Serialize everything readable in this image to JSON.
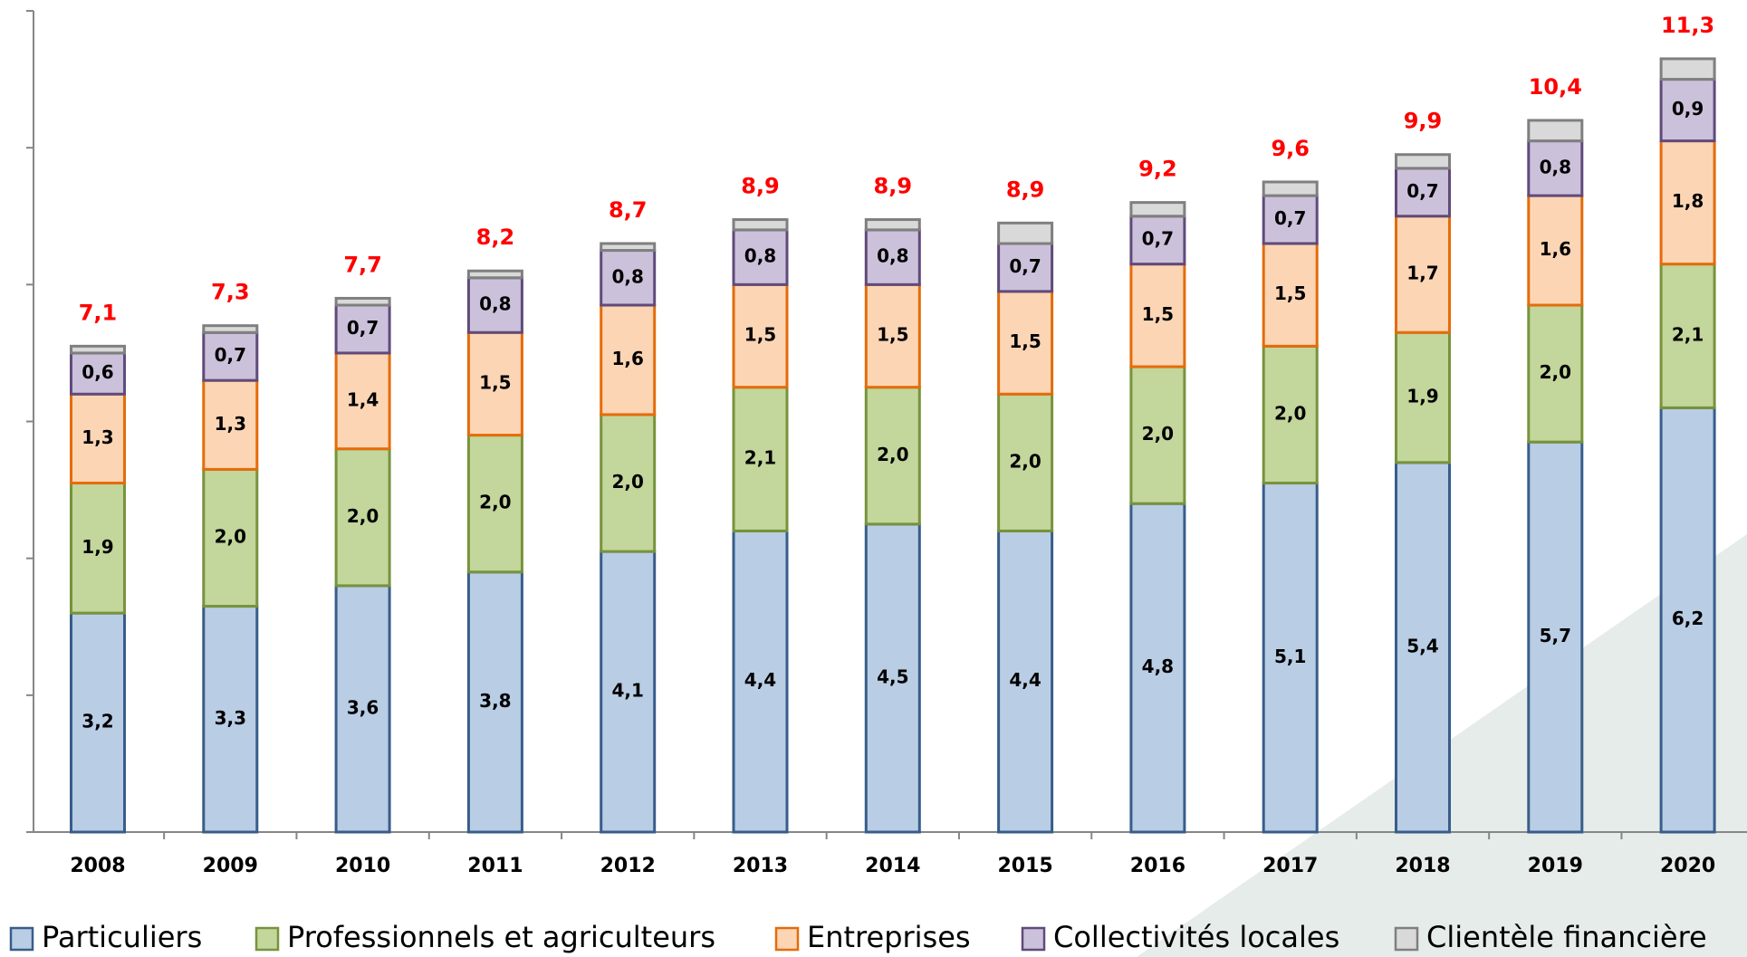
{
  "chart_data": {
    "type": "stacked_bar",
    "categories": [
      "2008",
      "2009",
      "2010",
      "2011",
      "2012",
      "2013",
      "2014",
      "2015",
      "2016",
      "2017",
      "2018",
      "2019",
      "2020"
    ],
    "ylim": [
      0,
      12
    ],
    "yticks": [
      0,
      2,
      4,
      6,
      8,
      10,
      12
    ],
    "series": [
      {
        "name": "Particuliers",
        "color": "#b9cde5",
        "edge": "#385d8a",
        "values": [
          3.2,
          3.3,
          3.6,
          3.8,
          4.1,
          4.4,
          4.5,
          4.4,
          4.8,
          5.1,
          5.4,
          5.7,
          6.2
        ],
        "value_labels": [
          "3,2",
          "3,3",
          "3,6",
          "3,8",
          "4,1",
          "4,4",
          "4,5",
          "4,4",
          "4,8",
          "5,1",
          "5,4",
          "5,7",
          "6,2"
        ]
      },
      {
        "name": "Professionnels et agriculteurs",
        "color": "#c3d69b",
        "edge": "#77933c",
        "values": [
          1.9,
          2.0,
          2.0,
          2.0,
          2.0,
          2.1,
          2.0,
          2.0,
          2.0,
          2.0,
          1.9,
          2.0,
          2.1
        ],
        "value_labels": [
          "1,9",
          "2,0",
          "2,0",
          "2,0",
          "2,0",
          "2,1",
          "2,0",
          "2,0",
          "2,0",
          "2,0",
          "1,9",
          "2,0",
          "2,1"
        ]
      },
      {
        "name": "Entreprises",
        "color": "#fcd5b5",
        "edge": "#e46c0a",
        "values": [
          1.3,
          1.3,
          1.4,
          1.5,
          1.6,
          1.5,
          1.5,
          1.5,
          1.5,
          1.5,
          1.7,
          1.6,
          1.8
        ],
        "value_labels": [
          "1,3",
          "1,3",
          "1,4",
          "1,5",
          "1,6",
          "1,5",
          "1,5",
          "1,5",
          "1,5",
          "1,5",
          "1,7",
          "1,6",
          "1,8"
        ]
      },
      {
        "name": "Collectivités locales",
        "color": "#ccc1da",
        "edge": "#604a7b",
        "values": [
          0.6,
          0.7,
          0.7,
          0.8,
          0.8,
          0.8,
          0.8,
          0.7,
          0.7,
          0.7,
          0.7,
          0.8,
          0.9
        ],
        "value_labels": [
          "0,6",
          "0,7",
          "0,7",
          "0,8",
          "0,8",
          "0,8",
          "0,8",
          "0,7",
          "0,7",
          "0,7",
          "0,7",
          "0,8",
          "0,9"
        ]
      },
      {
        "name": "Clientèle financière",
        "color": "#d9d9d9",
        "edge": "#7f7f7f",
        "values": [
          0.1,
          0.1,
          0.1,
          0.1,
          0.1,
          0.15,
          0.15,
          0.3,
          0.2,
          0.2,
          0.2,
          0.3,
          0.3
        ]
      }
    ],
    "totals": {
      "color": "#ff0000",
      "values": [
        7.1,
        7.3,
        7.7,
        8.2,
        8.7,
        8.9,
        8.9,
        8.9,
        9.2,
        9.6,
        9.9,
        10.4,
        11.3
      ],
      "value_labels": [
        "7,1",
        "7,3",
        "7,7",
        "8,2",
        "8,7",
        "8,9",
        "8,9",
        "8,9",
        "9,2",
        "9,6",
        "9,9",
        "10,4",
        "11,3"
      ]
    }
  }
}
